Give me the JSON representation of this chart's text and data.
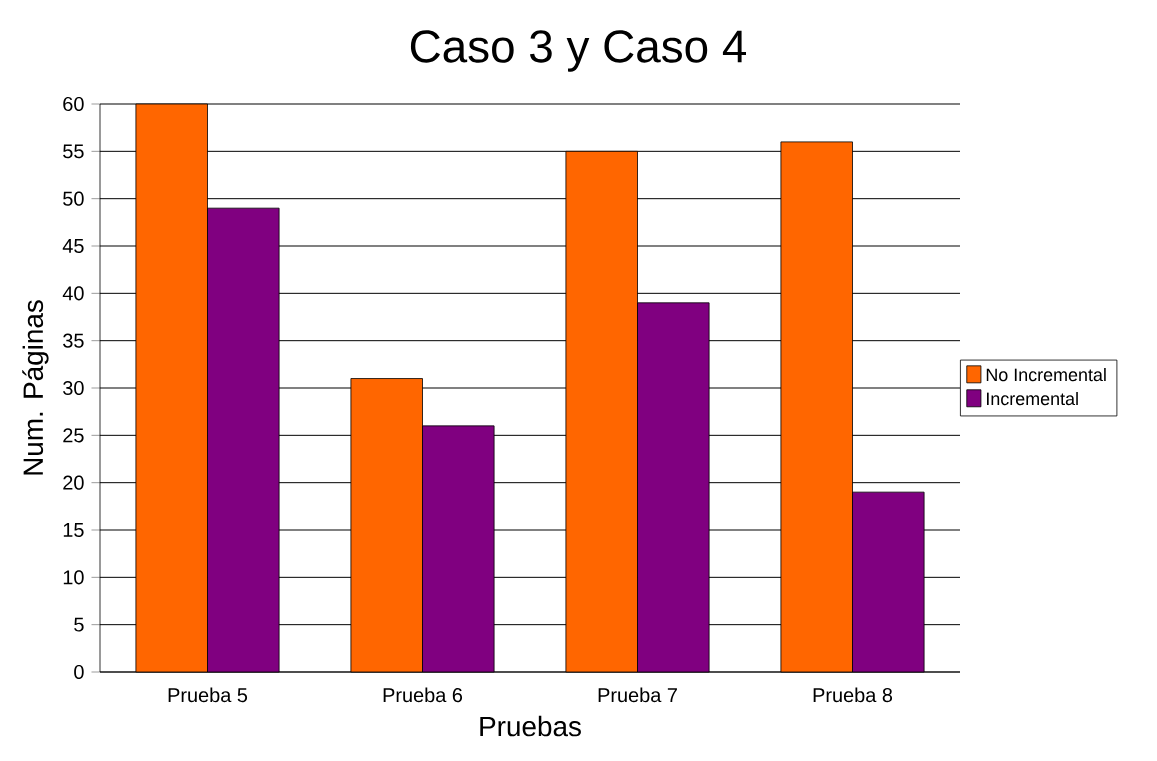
{
  "chart_data": {
    "type": "bar",
    "title": "Caso 3 y Caso 4",
    "xlabel": "Pruebas",
    "ylabel": "Num. Páginas",
    "categories": [
      "Prueba 5",
      "Prueba 6",
      "Prueba 7",
      "Prueba 8"
    ],
    "series": [
      {
        "name": "No Incremental",
        "color": "#ff6600",
        "values": [
          60,
          31,
          55,
          56
        ]
      },
      {
        "name": "Incremental",
        "color": "#800080",
        "values": [
          49,
          26,
          39,
          19
        ]
      }
    ],
    "ylim": [
      0,
      60
    ],
    "yticks": [
      0,
      5,
      10,
      15,
      20,
      25,
      30,
      35,
      40,
      45,
      50,
      55,
      60
    ],
    "grid": "y",
    "legend": "right"
  }
}
